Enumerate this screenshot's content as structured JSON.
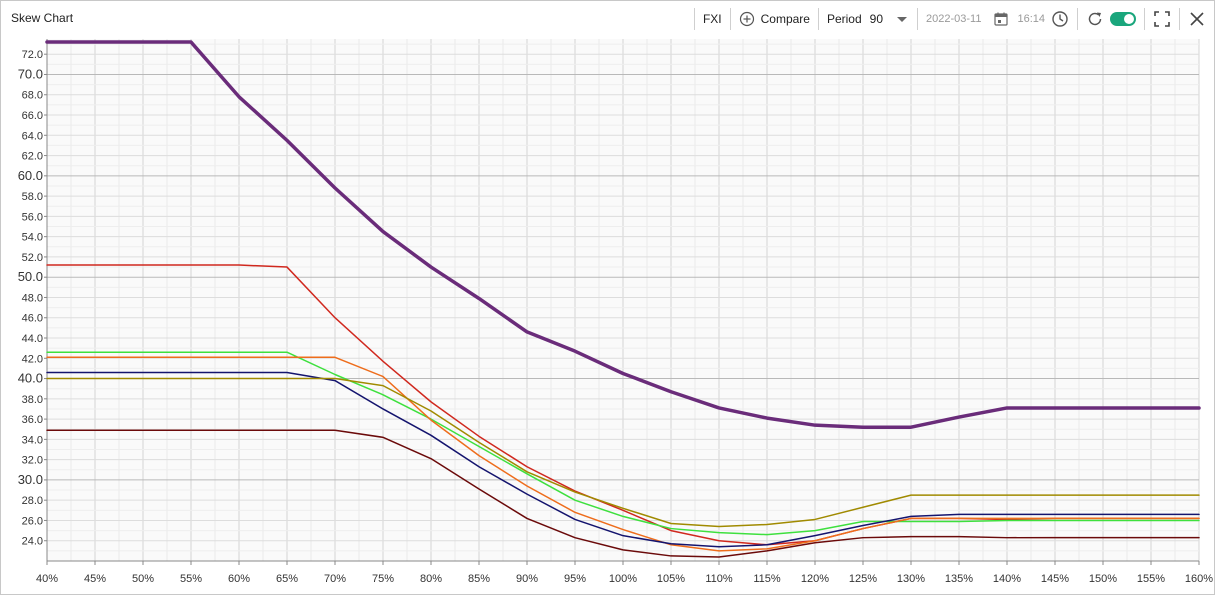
{
  "window": {
    "title": "Skew Chart"
  },
  "toolbar": {
    "symbol": "FXI",
    "compare_label": "Compare",
    "period_label": "Period",
    "period_value": "90",
    "date": "2022-03-11",
    "time": "16:14",
    "live_toggle_on": true,
    "icons": [
      "compare-plus-icon",
      "dropdown-arrow-icon",
      "calendar-icon",
      "clock-icon",
      "refresh-icon",
      "fullscreen-icon",
      "close-icon"
    ]
  },
  "chart_data": {
    "type": "line",
    "xlabel": "",
    "ylabel": "",
    "x": [
      "40%",
      "45%",
      "50%",
      "55%",
      "60%",
      "65%",
      "70%",
      "75%",
      "80%",
      "85%",
      "90%",
      "95%",
      "100%",
      "105%",
      "110%",
      "115%",
      "120%",
      "125%",
      "130%",
      "135%",
      "140%",
      "145%",
      "150%",
      "155%",
      "160%"
    ],
    "ylim": [
      22.0,
      73.5
    ],
    "y_ticks": [
      "24.0",
      "26.0",
      "28.0",
      "30.0",
      "32.0",
      "34.0",
      "36.0",
      "38.0",
      "40.0",
      "42.0",
      "44.0",
      "46.0",
      "48.0",
      "50.0",
      "52.0",
      "54.0",
      "56.0",
      "58.0",
      "60.0",
      "62.0",
      "64.0",
      "66.0",
      "68.0",
      "70.0",
      "72.0"
    ],
    "grid": true,
    "series": [
      {
        "color": "#6a2c7a",
        "width": 3.5,
        "values": [
          73.2,
          73.2,
          73.2,
          73.2,
          67.8,
          63.5,
          58.8,
          54.5,
          51.0,
          47.9,
          44.6,
          42.7,
          40.5,
          38.7,
          37.1,
          36.1,
          35.4,
          35.2,
          35.2,
          36.2,
          37.1,
          37.1,
          37.1,
          37.1,
          37.1
        ]
      },
      {
        "color": "#d0281e",
        "width": 1.5,
        "values": [
          51.2,
          51.2,
          51.2,
          51.2,
          51.2,
          51.0,
          46.0,
          41.7,
          37.7,
          34.3,
          31.3,
          28.9,
          27.0,
          25.0,
          24.0,
          23.6,
          24.0,
          25.2,
          26.2,
          26.2,
          26.1,
          26.2,
          26.2,
          26.2,
          26.2
        ]
      },
      {
        "color": "#3ee03e",
        "width": 1.5,
        "values": [
          42.6,
          42.6,
          42.6,
          42.6,
          42.6,
          42.6,
          40.4,
          38.4,
          36.0,
          33.3,
          30.6,
          28.0,
          26.4,
          25.2,
          24.8,
          24.6,
          25.0,
          25.9,
          25.9,
          25.9,
          26.0,
          26.0,
          26.0,
          26.0,
          26.0
        ]
      },
      {
        "color": "#ee6d1c",
        "width": 1.5,
        "values": [
          42.1,
          42.1,
          42.1,
          42.1,
          42.1,
          42.1,
          42.1,
          40.2,
          35.9,
          32.4,
          29.4,
          26.8,
          25.1,
          23.6,
          23.0,
          23.2,
          24.0,
          25.2,
          26.2,
          26.2,
          26.2,
          26.2,
          26.2,
          26.2,
          26.2
        ]
      },
      {
        "color": "#14146e",
        "width": 1.5,
        "values": [
          40.6,
          40.6,
          40.6,
          40.6,
          40.6,
          40.6,
          39.8,
          37.0,
          34.4,
          31.3,
          28.6,
          26.1,
          24.5,
          23.7,
          23.4,
          23.6,
          24.5,
          25.5,
          26.4,
          26.6,
          26.6,
          26.6,
          26.6,
          26.6,
          26.6
        ]
      },
      {
        "color": "#a08a00",
        "width": 1.5,
        "values": [
          40.0,
          40.0,
          40.0,
          40.0,
          40.0,
          40.0,
          40.0,
          39.3,
          36.8,
          33.7,
          30.8,
          28.8,
          27.2,
          25.7,
          25.4,
          25.6,
          26.1,
          27.3,
          28.5,
          28.5,
          28.5,
          28.5,
          28.5,
          28.5,
          28.5
        ]
      },
      {
        "color": "#6b0a0a",
        "width": 1.5,
        "values": [
          34.9,
          34.9,
          34.9,
          34.9,
          34.9,
          34.9,
          34.9,
          34.2,
          32.1,
          29.1,
          26.2,
          24.3,
          23.1,
          22.5,
          22.4,
          23.0,
          23.8,
          24.3,
          24.4,
          24.4,
          24.3,
          24.3,
          24.3,
          24.3,
          24.3
        ]
      }
    ]
  }
}
